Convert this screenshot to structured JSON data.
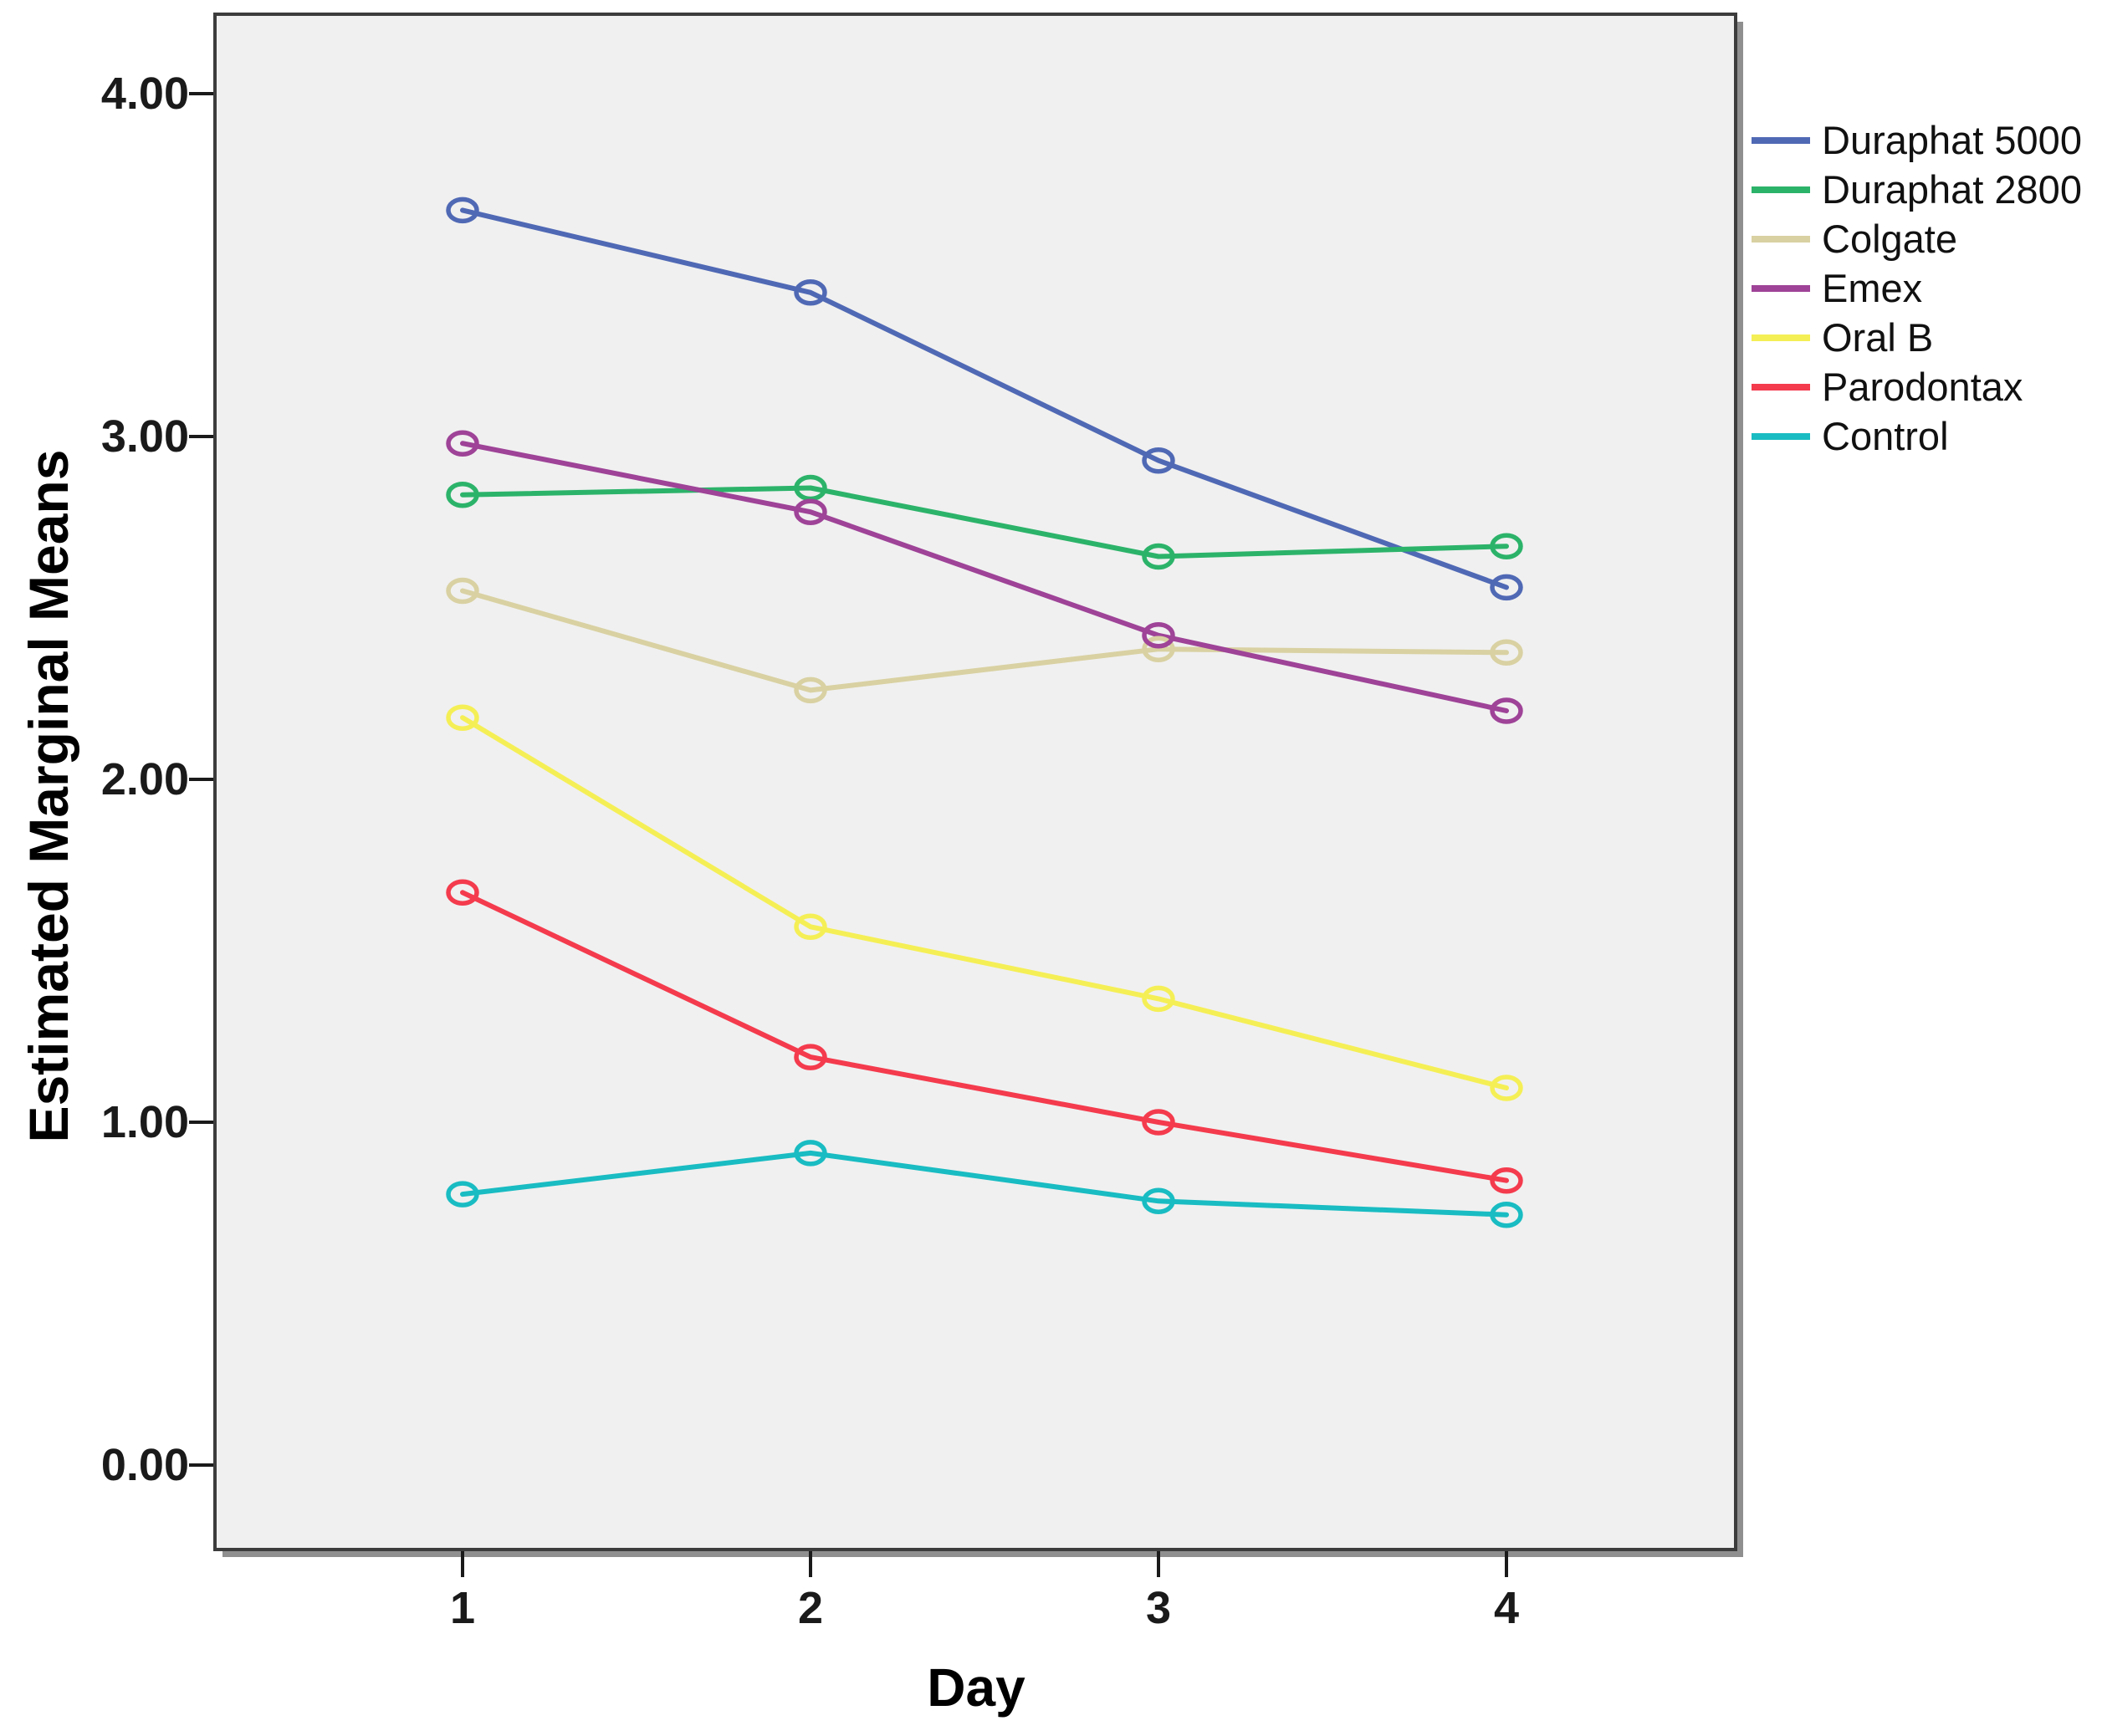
{
  "chart_data": {
    "type": "line",
    "title": "",
    "xlabel": "Day",
    "ylabel": "Estimated Marginal Means",
    "x_categories": [
      "1",
      "2",
      "3",
      "4"
    ],
    "y_ticks": [
      "0.00",
      "1.00",
      "2.00",
      "3.00",
      "4.00"
    ],
    "y_tick_values": [
      0,
      1,
      2,
      3,
      4
    ],
    "ylim": [
      -0.25,
      4.25
    ],
    "grid": false,
    "legend_position": "right",
    "plot_background": "#f0f0f0",
    "axis_color": "#1a1a1a",
    "series": [
      {
        "name": "Duraphat 5000",
        "color": "#5069b5",
        "values": [
          3.66,
          3.42,
          2.93,
          2.56
        ]
      },
      {
        "name": "Duraphat 2800",
        "color": "#2cb36a",
        "values": [
          2.83,
          2.85,
          2.65,
          2.68
        ]
      },
      {
        "name": "Colgate",
        "color": "#d9d1a2",
        "values": [
          2.55,
          2.26,
          2.38,
          2.37
        ]
      },
      {
        "name": "Emex",
        "color": "#9e4397",
        "values": [
          2.98,
          2.78,
          2.42,
          2.2
        ]
      },
      {
        "name": "Oral B",
        "color": "#f5ef56",
        "values": [
          2.18,
          1.57,
          1.36,
          1.1
        ]
      },
      {
        "name": "Parodontax",
        "color": "#f43b4d",
        "values": [
          1.67,
          1.19,
          1.0,
          0.83
        ]
      },
      {
        "name": "Control",
        "color": "#19bcc2",
        "values": [
          0.79,
          0.91,
          0.77,
          0.73
        ]
      }
    ]
  }
}
